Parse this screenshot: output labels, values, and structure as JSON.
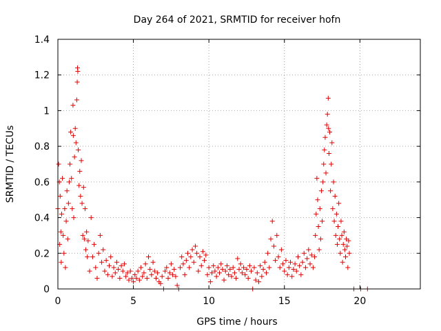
{
  "chart_data": {
    "type": "scatter",
    "title": "Day 264 of 2021, SRMTID for receiver hofn",
    "xlabel": "GPS time / hours",
    "ylabel": "SRMTID / TECUs",
    "xlim": [
      0,
      24
    ],
    "ylim": [
      0,
      1.4
    ],
    "x_ticks": [
      0,
      5,
      10,
      15,
      20
    ],
    "x_tick_labels": [
      "0",
      "5",
      "10",
      "15",
      "20"
    ],
    "y_ticks": [
      0,
      0.2,
      0.4,
      0.6,
      0.8,
      1,
      1.2,
      1.4
    ],
    "y_tick_labels": [
      "0",
      "0.2",
      "0.4",
      "0.6",
      "0.8",
      "1",
      "1.2",
      "1.4"
    ],
    "grid": true,
    "marker": "+",
    "series": [
      {
        "name": "SRMTID",
        "color": "#e00000",
        "points": [
          [
            0.0,
            0.45
          ],
          [
            0.05,
            0.7
          ],
          [
            0.1,
            0.6
          ],
          [
            0.12,
            0.25
          ],
          [
            0.15,
            0.52
          ],
          [
            0.2,
            0.32
          ],
          [
            0.22,
            0.15
          ],
          [
            0.25,
            0.42
          ],
          [
            0.3,
            0.62
          ],
          [
            0.35,
            0.3
          ],
          [
            0.4,
            0.2
          ],
          [
            0.45,
            0.45
          ],
          [
            0.5,
            0.12
          ],
          [
            0.55,
            0.38
          ],
          [
            0.6,
            0.55
          ],
          [
            0.65,
            0.28
          ],
          [
            0.7,
            0.48
          ],
          [
            0.75,
            0.6
          ],
          [
            0.8,
            0.7
          ],
          [
            0.85,
            0.88
          ],
          [
            0.9,
            0.62
          ],
          [
            0.95,
            0.45
          ],
          [
            1.0,
            1.03
          ],
          [
            1.02,
            0.86
          ],
          [
            1.05,
            0.4
          ],
          [
            1.1,
            0.74
          ],
          [
            1.15,
            0.9
          ],
          [
            1.2,
            0.82
          ],
          [
            1.25,
            1.06
          ],
          [
            1.28,
            1.16
          ],
          [
            1.3,
            1.24
          ],
          [
            1.32,
            1.22
          ],
          [
            1.35,
            0.78
          ],
          [
            1.4,
            0.58
          ],
          [
            1.45,
            0.66
          ],
          [
            1.5,
            0.52
          ],
          [
            1.55,
            0.72
          ],
          [
            1.6,
            0.48
          ],
          [
            1.65,
            0.3
          ],
          [
            1.7,
            0.57
          ],
          [
            1.75,
            0.28
          ],
          [
            1.8,
            0.45
          ],
          [
            1.85,
            0.22
          ],
          [
            1.9,
            0.32
          ],
          [
            1.95,
            0.18
          ],
          [
            2.0,
            0.27
          ],
          [
            2.1,
            0.1
          ],
          [
            2.2,
            0.4
          ],
          [
            2.3,
            0.18
          ],
          [
            2.4,
            0.25
          ],
          [
            2.5,
            0.12
          ],
          [
            2.6,
            0.06
          ],
          [
            2.7,
            0.2
          ],
          [
            2.8,
            0.3
          ],
          [
            2.9,
            0.15
          ],
          [
            3.0,
            0.22
          ],
          [
            3.1,
            0.1
          ],
          [
            3.2,
            0.16
          ],
          [
            3.3,
            0.08
          ],
          [
            3.4,
            0.13
          ],
          [
            3.5,
            0.18
          ],
          [
            3.6,
            0.07
          ],
          [
            3.7,
            0.12
          ],
          [
            3.8,
            0.09
          ],
          [
            3.9,
            0.15
          ],
          [
            4.0,
            0.11
          ],
          [
            4.1,
            0.06
          ],
          [
            4.2,
            0.13
          ],
          [
            4.3,
            0.1
          ],
          [
            4.4,
            0.14
          ],
          [
            4.5,
            0.07
          ],
          [
            4.6,
            0.09
          ],
          [
            4.7,
            0.05
          ],
          [
            4.8,
            0.1
          ],
          [
            4.9,
            0.06
          ],
          [
            5.0,
            0.04
          ],
          [
            5.1,
            0.08
          ],
          [
            5.2,
            0.06
          ],
          [
            5.3,
            0.1
          ],
          [
            5.4,
            0.05
          ],
          [
            5.5,
            0.12
          ],
          [
            5.6,
            0.07
          ],
          [
            5.7,
            0.09
          ],
          [
            5.8,
            0.14
          ],
          [
            5.9,
            0.06
          ],
          [
            6.0,
            0.18
          ],
          [
            6.1,
            0.11
          ],
          [
            6.2,
            0.08
          ],
          [
            6.3,
            0.15
          ],
          [
            6.4,
            0.1
          ],
          [
            6.5,
            0.06
          ],
          [
            6.6,
            0.09
          ],
          [
            6.7,
            0.04
          ],
          [
            6.8,
            0.03
          ],
          [
            6.9,
            0.07
          ],
          [
            7.0,
            0.0
          ],
          [
            7.1,
            0.1
          ],
          [
            7.2,
            0.12
          ],
          [
            7.3,
            0.06
          ],
          [
            7.4,
            0.09
          ],
          [
            7.5,
            0.14
          ],
          [
            7.6,
            0.08
          ],
          [
            7.7,
            0.11
          ],
          [
            7.8,
            0.07
          ],
          [
            7.9,
            0.02
          ],
          [
            8.0,
            0.0
          ],
          [
            8.1,
            0.12
          ],
          [
            8.2,
            0.18
          ],
          [
            8.3,
            0.14
          ],
          [
            8.4,
            0.08
          ],
          [
            8.5,
            0.16
          ],
          [
            8.6,
            0.2
          ],
          [
            8.7,
            0.12
          ],
          [
            8.8,
            0.18
          ],
          [
            8.9,
            0.22
          ],
          [
            9.0,
            0.15
          ],
          [
            9.1,
            0.24
          ],
          [
            9.2,
            0.2
          ],
          [
            9.3,
            0.1
          ],
          [
            9.4,
            0.18
          ],
          [
            9.5,
            0.13
          ],
          [
            9.6,
            0.21
          ],
          [
            9.7,
            0.16
          ],
          [
            9.8,
            0.19
          ],
          [
            9.9,
            0.08
          ],
          [
            10.0,
            0.12
          ],
          [
            10.1,
            0.04
          ],
          [
            10.2,
            0.09
          ],
          [
            10.3,
            0.13
          ],
          [
            10.4,
            0.1
          ],
          [
            10.5,
            0.07
          ],
          [
            10.6,
            0.12
          ],
          [
            10.7,
            0.09
          ],
          [
            10.8,
            0.14
          ],
          [
            10.9,
            0.11
          ],
          [
            11.0,
            0.05
          ],
          [
            11.1,
            0.1
          ],
          [
            11.2,
            0.13
          ],
          [
            11.3,
            0.08
          ],
          [
            11.4,
            0.11
          ],
          [
            11.5,
            0.07
          ],
          [
            11.6,
            0.12
          ],
          [
            11.7,
            0.09
          ],
          [
            11.8,
            0.06
          ],
          [
            11.9,
            0.17
          ],
          [
            12.0,
            0.11
          ],
          [
            12.1,
            0.14
          ],
          [
            12.2,
            0.09
          ],
          [
            12.3,
            0.12
          ],
          [
            12.4,
            0.08
          ],
          [
            12.5,
            0.11
          ],
          [
            12.6,
            0.06
          ],
          [
            12.7,
            0.13
          ],
          [
            12.8,
            0.1
          ],
          [
            12.9,
            0.0
          ],
          [
            13.0,
            0.12
          ],
          [
            13.1,
            0.05
          ],
          [
            13.2,
            0.09
          ],
          [
            13.3,
            0.04
          ],
          [
            13.4,
            0.13
          ],
          [
            13.5,
            0.07
          ],
          [
            13.6,
            0.11
          ],
          [
            13.7,
            0.15
          ],
          [
            13.8,
            0.09
          ],
          [
            13.9,
            0.2
          ],
          [
            14.0,
            0.12
          ],
          [
            14.1,
            0.28
          ],
          [
            14.2,
            0.38
          ],
          [
            14.3,
            0.24
          ],
          [
            14.4,
            0.16
          ],
          [
            14.5,
            0.3
          ],
          [
            14.6,
            0.18
          ],
          [
            14.7,
            0.12
          ],
          [
            14.8,
            0.22
          ],
          [
            14.9,
            0.14
          ],
          [
            15.0,
            0.1
          ],
          [
            15.1,
            0.16
          ],
          [
            15.2,
            0.08
          ],
          [
            15.3,
            0.12
          ],
          [
            15.4,
            0.15
          ],
          [
            15.5,
            0.07
          ],
          [
            15.6,
            0.11
          ],
          [
            15.7,
            0.14
          ],
          [
            15.8,
            0.1
          ],
          [
            15.9,
            0.18
          ],
          [
            16.0,
            0.13
          ],
          [
            16.1,
            0.08
          ],
          [
            16.2,
            0.15
          ],
          [
            16.3,
            0.2
          ],
          [
            16.4,
            0.12
          ],
          [
            16.5,
            0.17
          ],
          [
            16.6,
            0.22
          ],
          [
            16.7,
            0.14
          ],
          [
            16.8,
            0.19
          ],
          [
            16.9,
            0.12
          ],
          [
            17.0,
            0.18
          ],
          [
            17.05,
            0.3
          ],
          [
            17.1,
            0.42
          ],
          [
            17.15,
            0.62
          ],
          [
            17.2,
            0.5
          ],
          [
            17.25,
            0.35
          ],
          [
            17.3,
            0.22
          ],
          [
            17.35,
            0.45
          ],
          [
            17.4,
            0.28
          ],
          [
            17.45,
            0.55
          ],
          [
            17.5,
            0.38
          ],
          [
            17.55,
            0.6
          ],
          [
            17.6,
            0.7
          ],
          [
            17.65,
            0.78
          ],
          [
            17.7,
            0.85
          ],
          [
            17.75,
            0.65
          ],
          [
            17.8,
            0.92
          ],
          [
            17.85,
            0.98
          ],
          [
            17.9,
            1.07
          ],
          [
            17.92,
            0.9
          ],
          [
            17.95,
            0.76
          ],
          [
            18.0,
            0.88
          ],
          [
            18.05,
            0.55
          ],
          [
            18.1,
            0.7
          ],
          [
            18.15,
            0.82
          ],
          [
            18.2,
            0.45
          ],
          [
            18.25,
            0.6
          ],
          [
            18.3,
            0.38
          ],
          [
            18.35,
            0.52
          ],
          [
            18.4,
            0.3
          ],
          [
            18.45,
            0.42
          ],
          [
            18.5,
            0.25
          ],
          [
            18.55,
            0.35
          ],
          [
            18.6,
            0.48
          ],
          [
            18.65,
            0.28
          ],
          [
            18.7,
            0.2
          ],
          [
            18.75,
            0.38
          ],
          [
            18.8,
            0.3
          ],
          [
            18.85,
            0.15
          ],
          [
            18.9,
            0.25
          ],
          [
            18.95,
            0.32
          ],
          [
            19.0,
            0.22
          ],
          [
            19.05,
            0.18
          ],
          [
            19.1,
            0.28
          ],
          [
            19.15,
            0.24
          ],
          [
            19.2,
            0.12
          ],
          [
            19.25,
            0.27
          ],
          [
            19.3,
            0.2
          ],
          [
            19.6,
            0.0
          ],
          [
            20.05,
            0.0
          ],
          [
            20.5,
            0.0
          ]
        ]
      }
    ]
  }
}
